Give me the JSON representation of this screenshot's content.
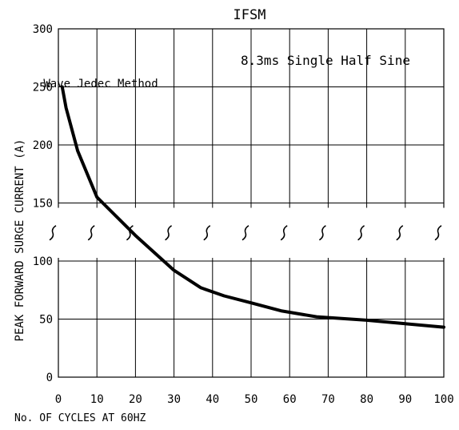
{
  "chart_data": {
    "type": "line",
    "title": "IFSM",
    "annotation": [
      "8.3ms Single Half Sine",
      "Wave Jedec Method"
    ],
    "xlabel": "No. OF CYCLES AT 60HZ",
    "ylabel": "PEAK FORWARD SURGE CURRENT (A)",
    "x_ticks": [
      "0",
      "10",
      "20",
      "30",
      "40",
      "50",
      "60",
      "70",
      "80",
      "90",
      "100"
    ],
    "y_ticks": [
      "0",
      "50",
      "100",
      "150",
      "200",
      "250",
      "300"
    ],
    "xlim": [
      0,
      100
    ],
    "ylim": [
      0,
      300
    ],
    "grid": true,
    "axis_break": true,
    "line_color": "#000000",
    "series": [
      {
        "x": [
          1,
          2,
          5,
          10,
          20,
          30,
          37,
          43,
          50,
          58,
          67,
          80,
          90,
          100
        ],
        "y": [
          250,
          232,
          195,
          155,
          122,
          92,
          77,
          70,
          64,
          57,
          52,
          49,
          46,
          43
        ]
      }
    ]
  }
}
